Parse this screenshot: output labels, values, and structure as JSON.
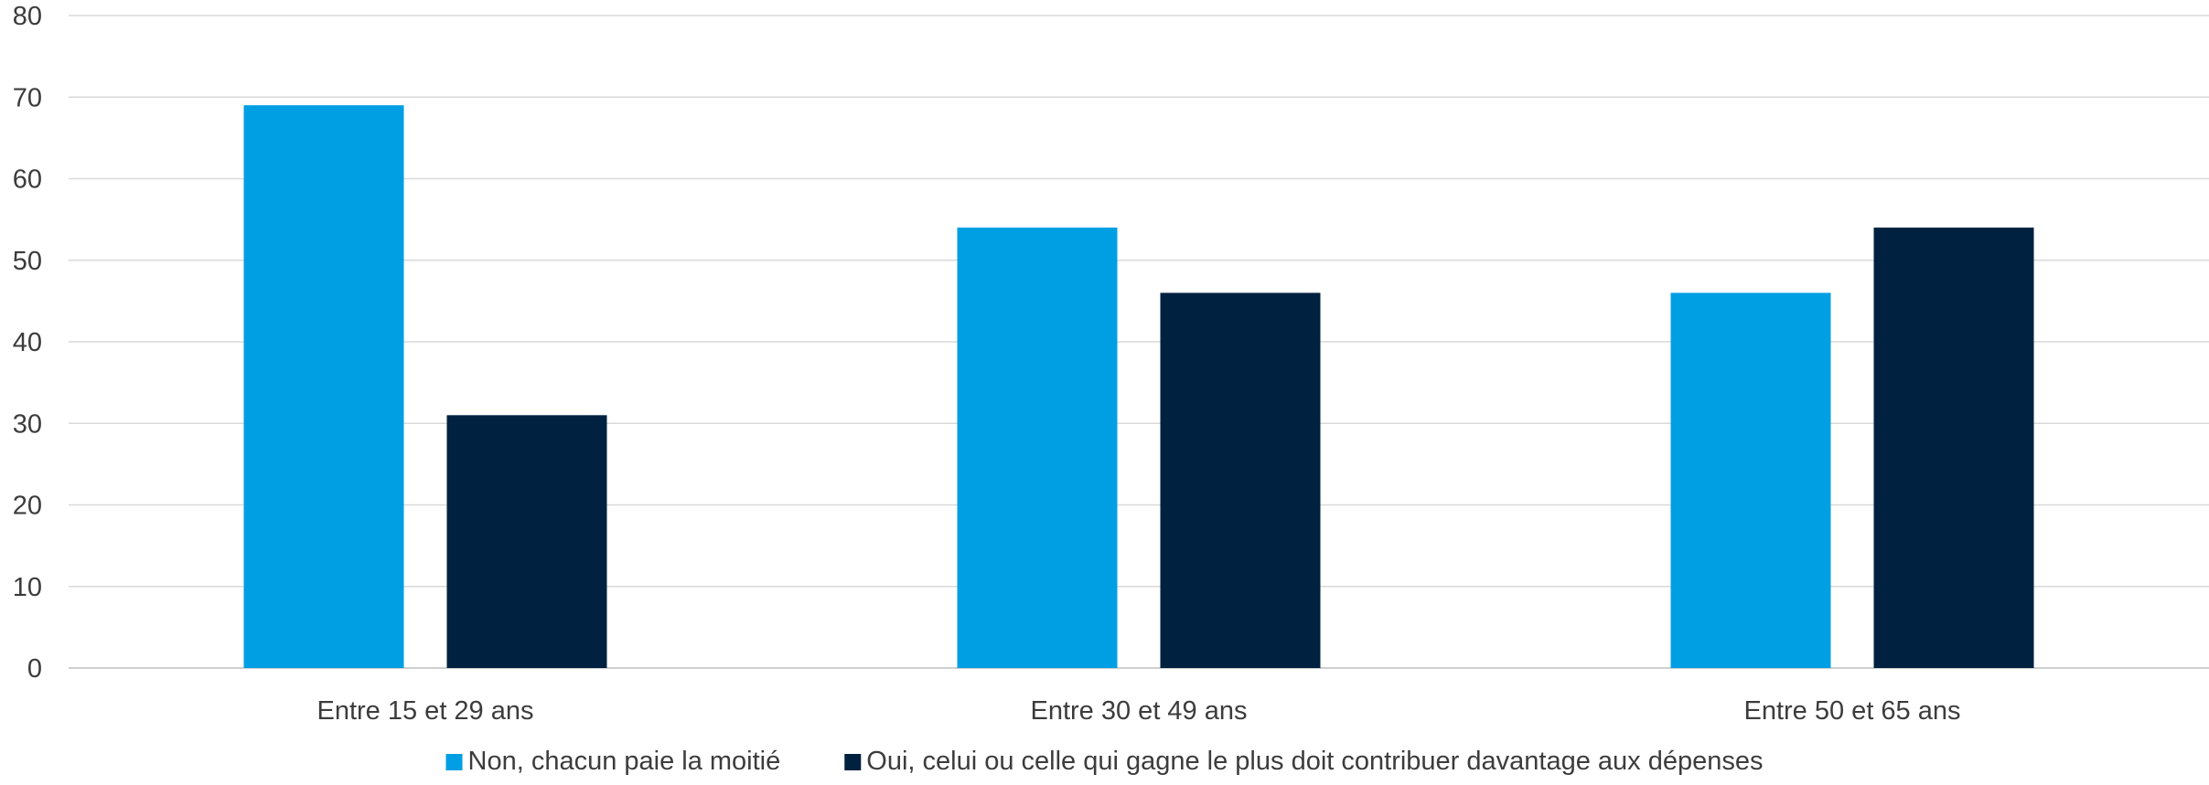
{
  "chart_data": {
    "type": "bar",
    "title": "",
    "xlabel": "",
    "ylabel": "",
    "categories": [
      "Entre 15 et 29 ans",
      "Entre 30 et 49 ans",
      "Entre 50 et 65 ans"
    ],
    "series": [
      {
        "name": "Non, chacun paie la moitié",
        "color": "#009ee3",
        "values": [
          69,
          54,
          46
        ]
      },
      {
        "name": "Oui, celui ou celle qui gagne le plus doit contribuer davantage aux dépenses",
        "color": "#00213f",
        "values": [
          31,
          46,
          54
        ]
      }
    ],
    "ylim": [
      0,
      80
    ],
    "yticks": [
      0,
      10,
      20,
      30,
      40,
      50,
      60,
      70,
      80
    ],
    "grid": true,
    "legend_position": "bottom"
  }
}
